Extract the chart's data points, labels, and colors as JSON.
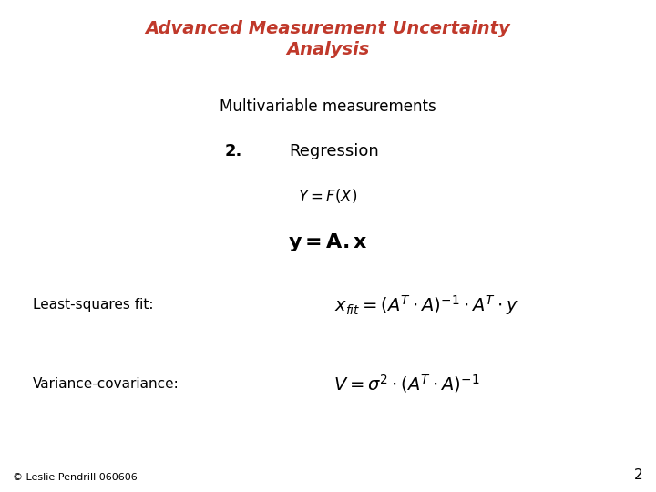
{
  "title_line1": "Advanced Measurement Uncertainty",
  "title_line2": "Analysis",
  "title_color": "#C0392B",
  "title_fontsize": 14,
  "subtitle": "Multivariable measurements",
  "subtitle_fontsize": 12,
  "item_number": "2.",
  "item_label": "Regression",
  "item_fontsize": 13,
  "eq1": "$Y = F(X)$",
  "eq1_fontsize": 12,
  "eq2_fontsize": 16,
  "label_lsq": "Least-squares fit:",
  "label_vc": "Variance-covariance:",
  "label_fontsize": 11,
  "eq_lsq": "$x_{fit} = \\left(A^T \\cdot A\\right)^{-1} \\cdot A^T \\cdot y$",
  "eq_vc": "$V = \\sigma^2 \\cdot \\left(A^T \\cdot A\\right)^{-1}$",
  "eq_fontsize": 14,
  "footer": "© Leslie Pendrill 060606",
  "footer_fontsize": 8,
  "page_number": "2",
  "page_fontsize": 11,
  "background_color": "#FFFFFF",
  "text_color": "#000000"
}
